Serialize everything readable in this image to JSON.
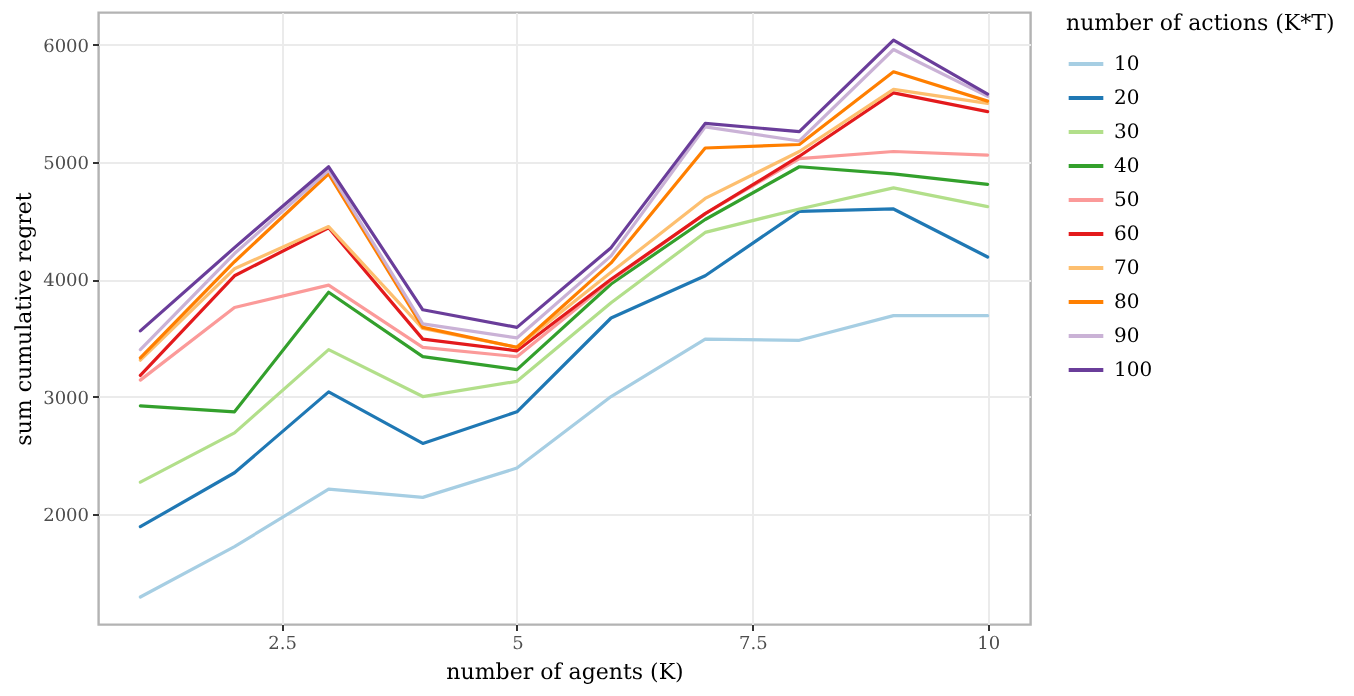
{
  "chart_data": {
    "type": "line",
    "xlabel": "number of agents (K)",
    "ylabel": "sum cumulative regret",
    "legend_title": "number of actions (K*T)",
    "legend": "right",
    "grid": true,
    "x": [
      1,
      2,
      3,
      4,
      5,
      6,
      7,
      8,
      9,
      10
    ],
    "xlim": [
      0.55,
      10.45
    ],
    "xticks": [
      2.5,
      5,
      7.5,
      10
    ],
    "ylim": [
      1060,
      6280
    ],
    "yticks": [
      2000,
      3000,
      4000,
      5000,
      6000
    ],
    "series": [
      {
        "name": "10",
        "color": "#a6cee3",
        "values": [
          1290,
          1720,
          2210,
          2140,
          2390,
          3000,
          3490,
          3480,
          3690,
          3690
        ]
      },
      {
        "name": "20",
        "color": "#1f78b4",
        "values": [
          1890,
          2350,
          3040,
          2600,
          2870,
          3670,
          4030,
          4580,
          4600,
          4190
        ]
      },
      {
        "name": "30",
        "color": "#b2df8a",
        "values": [
          2270,
          2690,
          3400,
          3000,
          3130,
          3800,
          4400,
          4600,
          4780,
          4620
        ]
      },
      {
        "name": "40",
        "color": "#33a02c",
        "values": [
          2920,
          2870,
          3890,
          3340,
          3230,
          3960,
          4510,
          4960,
          4900,
          4810
        ]
      },
      {
        "name": "50",
        "color": "#fb9a99",
        "values": [
          3140,
          3760,
          3950,
          3420,
          3340,
          3990,
          4560,
          5030,
          5090,
          5060
        ]
      },
      {
        "name": "60",
        "color": "#e31a1c",
        "values": [
          3180,
          4030,
          4440,
          3490,
          3390,
          4000,
          4560,
          5050,
          5590,
          5430
        ]
      },
      {
        "name": "70",
        "color": "#fdbf6f",
        "values": [
          3310,
          4090,
          4450,
          3580,
          3420,
          4060,
          4690,
          5090,
          5620,
          5500
        ]
      },
      {
        "name": "80",
        "color": "#ff7f00",
        "values": [
          3330,
          4150,
          4900,
          3590,
          3420,
          4140,
          5120,
          5150,
          5770,
          5520
        ]
      },
      {
        "name": "90",
        "color": "#cab2d6",
        "values": [
          3400,
          4220,
          4930,
          3620,
          3500,
          4200,
          5300,
          5180,
          5960,
          5560
        ]
      },
      {
        "name": "100",
        "color": "#6a3d9a",
        "values": [
          3560,
          4270,
          4960,
          3740,
          3590,
          4270,
          5330,
          5260,
          6040,
          5580
        ]
      }
    ]
  }
}
